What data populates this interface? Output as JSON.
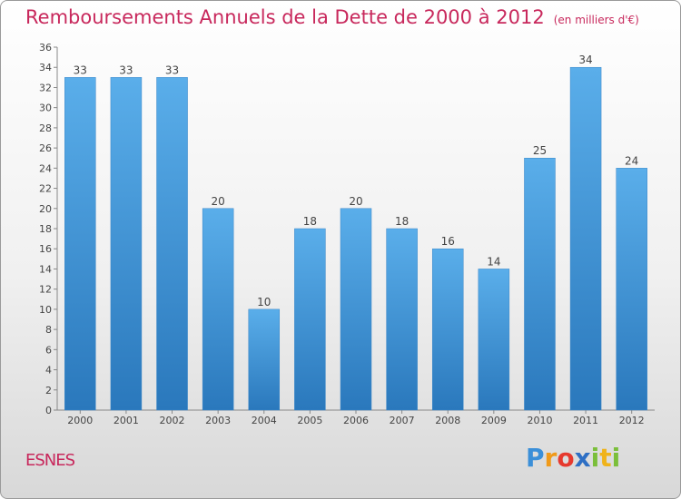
{
  "header": {
    "title": "Remboursements Annuels de la Dette de 2000 à 2012",
    "unit": "(en milliers d'€)"
  },
  "footer": {
    "place": "ESNES",
    "logo": "Proxiti"
  },
  "colors": {
    "title": "#c8285c",
    "bar_top": "#5aaeea",
    "bar_bottom": "#2a78bc"
  },
  "chart_data": {
    "type": "bar",
    "title": "Remboursements Annuels de la Dette de 2000 à 2012",
    "subtitle": "(en milliers d'€)",
    "categories": [
      "2000",
      "2001",
      "2002",
      "2003",
      "2004",
      "2005",
      "2006",
      "2007",
      "2008",
      "2009",
      "2010",
      "2011",
      "2012"
    ],
    "values": [
      33,
      33,
      33,
      20,
      10,
      18,
      20,
      18,
      16,
      14,
      25,
      34,
      24
    ],
    "ylim": [
      0,
      36
    ],
    "yticks": [
      0,
      2,
      4,
      6,
      8,
      10,
      12,
      14,
      16,
      18,
      20,
      22,
      24,
      26,
      28,
      30,
      32,
      34,
      36
    ],
    "grid": false,
    "data_labels": true
  }
}
